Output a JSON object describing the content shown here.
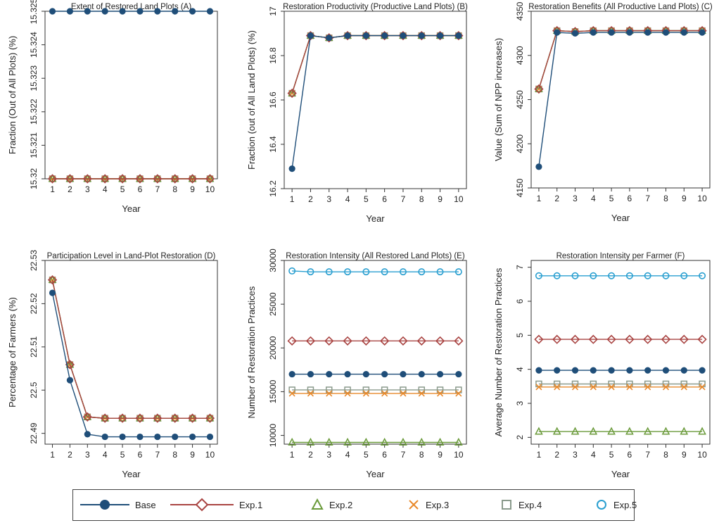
{
  "series_meta": [
    {
      "name": "Base",
      "color": "#1f4e79",
      "marker": "filled-circle"
    },
    {
      "name": "Exp.1",
      "color": "#a94442",
      "marker": "diamond"
    },
    {
      "name": "Exp.2",
      "color": "#6a9a3a",
      "marker": "triangle"
    },
    {
      "name": "Exp.3",
      "color": "#e8892b",
      "marker": "x"
    },
    {
      "name": "Exp.4",
      "color": "#8a9a8c",
      "marker": "square"
    },
    {
      "name": "Exp.5",
      "color": "#2a9fd0",
      "marker": "circle"
    }
  ],
  "legend": {
    "items": [
      "Base",
      "Exp.1",
      "Exp.2",
      "Exp.3",
      "Exp.4",
      "Exp.5"
    ]
  },
  "chart_data": [
    {
      "type": "line",
      "title": "Extent of Restored Land Plots (A)",
      "xlabel": "Year",
      "ylabel": "Fraction (Out of All Plots) (%)",
      "x": [
        1,
        2,
        3,
        4,
        5,
        6,
        7,
        8,
        9,
        10
      ],
      "xticks": [
        "1",
        "2",
        "3",
        "4",
        "5",
        "6",
        "7",
        "8",
        "9",
        "10"
      ],
      "ylim": [
        15.32,
        15.325
      ],
      "yticks": [
        15.32,
        15.321,
        15.322,
        15.323,
        15.324,
        15.325
      ],
      "ytick_labels": [
        "15.32",
        "15.321",
        "15.322",
        "15.323",
        "15.324",
        "15.325"
      ],
      "series": [
        {
          "name": "Base",
          "values": [
            15.325,
            15.325,
            15.325,
            15.325,
            15.325,
            15.325,
            15.325,
            15.325,
            15.325,
            15.325
          ]
        },
        {
          "name": "Exp.1",
          "values": [
            15.32,
            15.32,
            15.32,
            15.32,
            15.32,
            15.32,
            15.32,
            15.32,
            15.32,
            15.32
          ]
        },
        {
          "name": "Exp.2",
          "values": [
            15.32,
            15.32,
            15.32,
            15.32,
            15.32,
            15.32,
            15.32,
            15.32,
            15.32,
            15.32
          ]
        },
        {
          "name": "Exp.3",
          "values": [
            15.32,
            15.32,
            15.32,
            15.32,
            15.32,
            15.32,
            15.32,
            15.32,
            15.32,
            15.32
          ]
        },
        {
          "name": "Exp.4",
          "values": [
            15.32,
            15.32,
            15.32,
            15.32,
            15.32,
            15.32,
            15.32,
            15.32,
            15.32,
            15.32
          ]
        },
        {
          "name": "Exp.5",
          "values": [
            15.32,
            15.32,
            15.32,
            15.32,
            15.32,
            15.32,
            15.32,
            15.32,
            15.32,
            15.32
          ]
        }
      ]
    },
    {
      "type": "line",
      "title": "Restoration Productivity (Productive Land Plots) (B)",
      "xlabel": "Year",
      "ylabel": "Fraction (out of All Land Plots) (%)",
      "x": [
        1,
        2,
        3,
        4,
        5,
        6,
        7,
        8,
        9,
        10
      ],
      "xticks": [
        "1",
        "2",
        "3",
        "4",
        "5",
        "6",
        "7",
        "8",
        "9",
        "10"
      ],
      "ylim": [
        16.2,
        17
      ],
      "yticks": [
        16.2,
        16.4,
        16.6,
        16.8,
        17
      ],
      "ytick_labels": [
        "16.2",
        "16.4",
        "16.6",
        "16.8",
        "17"
      ],
      "series": [
        {
          "name": "Base",
          "values": [
            16.29,
            16.89,
            16.88,
            16.89,
            16.89,
            16.89,
            16.89,
            16.89,
            16.89,
            16.89
          ]
        },
        {
          "name": "Exp.1",
          "values": [
            16.63,
            16.89,
            16.88,
            16.89,
            16.89,
            16.89,
            16.89,
            16.89,
            16.89,
            16.89
          ]
        },
        {
          "name": "Exp.2",
          "values": [
            16.63,
            16.89,
            16.88,
            16.89,
            16.89,
            16.89,
            16.89,
            16.89,
            16.89,
            16.89
          ]
        },
        {
          "name": "Exp.3",
          "values": [
            16.63,
            16.89,
            16.88,
            16.89,
            16.89,
            16.89,
            16.89,
            16.89,
            16.89,
            16.89
          ]
        },
        {
          "name": "Exp.4",
          "values": [
            16.63,
            16.89,
            16.88,
            16.89,
            16.89,
            16.89,
            16.89,
            16.89,
            16.89,
            16.89
          ]
        },
        {
          "name": "Exp.5",
          "values": [
            16.63,
            16.89,
            16.88,
            16.89,
            16.89,
            16.89,
            16.89,
            16.89,
            16.89,
            16.89
          ]
        }
      ]
    },
    {
      "type": "line",
      "title": "Restoration Benefits (All Productive Land Plots) (C)",
      "xlabel": "Year",
      "ylabel": "Value (Sum of NPP increases)",
      "x": [
        1,
        2,
        3,
        4,
        5,
        6,
        7,
        8,
        9,
        10
      ],
      "xticks": [
        "1",
        "2",
        "3",
        "4",
        "5",
        "6",
        "7",
        "8",
        "9",
        "10"
      ],
      "ylim": [
        4150,
        4350
      ],
      "yticks": [
        4150,
        4200,
        4250,
        4300,
        4350
      ],
      "ytick_labels": [
        "4150",
        "4200",
        "4250",
        "4300",
        "4350"
      ],
      "series": [
        {
          "name": "Base",
          "values": [
            4174,
            4326,
            4325,
            4326,
            4326,
            4326,
            4326,
            4326,
            4326,
            4326
          ]
        },
        {
          "name": "Exp.1",
          "values": [
            4262,
            4328,
            4327,
            4328,
            4328,
            4328,
            4328,
            4328,
            4328,
            4328
          ]
        },
        {
          "name": "Exp.2",
          "values": [
            4262,
            4328,
            4327,
            4328,
            4328,
            4328,
            4328,
            4328,
            4328,
            4328
          ]
        },
        {
          "name": "Exp.3",
          "values": [
            4262,
            4328,
            4327,
            4328,
            4328,
            4328,
            4328,
            4328,
            4328,
            4328
          ]
        },
        {
          "name": "Exp.4",
          "values": [
            4262,
            4328,
            4327,
            4328,
            4328,
            4328,
            4328,
            4328,
            4328,
            4328
          ]
        },
        {
          "name": "Exp.5",
          "values": [
            4262,
            4328,
            4327,
            4328,
            4328,
            4328,
            4328,
            4328,
            4328,
            4328
          ]
        }
      ]
    },
    {
      "type": "line",
      "title": "Participation Level in Land-Plot Restoration (D)",
      "xlabel": "Year",
      "ylabel": "Percentage of Farmers (%)",
      "x": [
        1,
        2,
        3,
        4,
        5,
        6,
        7,
        8,
        9,
        10
      ],
      "xticks": [
        "1",
        "2",
        "3",
        "4",
        "5",
        "6",
        "7",
        "8",
        "9",
        "10"
      ],
      "ylim": [
        22.4875,
        22.53
      ],
      "yticks": [
        22.49,
        22.5,
        22.51,
        22.52,
        22.53
      ],
      "ytick_labels": [
        "22.49",
        "22.5",
        "22.51",
        "22.52",
        "22.53"
      ],
      "series": [
        {
          "name": "Base",
          "values": [
            22.5225,
            22.5023,
            22.4898,
            22.4892,
            22.4892,
            22.4892,
            22.4892,
            22.4892,
            22.4892,
            22.4892
          ]
        },
        {
          "name": "Exp.1",
          "values": [
            22.5255,
            22.5059,
            22.4938,
            22.4935,
            22.4935,
            22.4935,
            22.4935,
            22.4935,
            22.4935,
            22.4935
          ]
        },
        {
          "name": "Exp.2",
          "values": [
            22.5255,
            22.5059,
            22.4938,
            22.4935,
            22.4935,
            22.4935,
            22.4935,
            22.4935,
            22.4935,
            22.4935
          ]
        },
        {
          "name": "Exp.3",
          "values": [
            22.5255,
            22.5059,
            22.4938,
            22.4935,
            22.4935,
            22.4935,
            22.4935,
            22.4935,
            22.4935,
            22.4935
          ]
        },
        {
          "name": "Exp.4",
          "values": [
            22.5255,
            22.5059,
            22.4938,
            22.4935,
            22.4935,
            22.4935,
            22.4935,
            22.4935,
            22.4935,
            22.4935
          ]
        },
        {
          "name": "Exp.5",
          "values": [
            22.5255,
            22.5059,
            22.4938,
            22.4935,
            22.4935,
            22.4935,
            22.4935,
            22.4935,
            22.4935,
            22.4935
          ]
        }
      ]
    },
    {
      "type": "line",
      "title": "Restoration Intensity (All Restored Land Plots) (E)",
      "xlabel": "Year",
      "ylabel": "Number of Restoration Practices",
      "x": [
        1,
        2,
        3,
        4,
        5,
        6,
        7,
        8,
        9,
        10
      ],
      "xticks": [
        "1",
        "2",
        "3",
        "4",
        "5",
        "6",
        "7",
        "8",
        "9",
        "10"
      ],
      "ylim": [
        9000,
        30000
      ],
      "yticks": [
        10000,
        15000,
        20000,
        25000,
        30000
      ],
      "ytick_labels": [
        "10000",
        "15000",
        "20000",
        "25000",
        "30000"
      ],
      "series": [
        {
          "name": "Base",
          "values": [
            17000,
            17000,
            17000,
            17000,
            17000,
            17000,
            17000,
            17000,
            17000,
            17000
          ]
        },
        {
          "name": "Exp.1",
          "values": [
            20800,
            20800,
            20800,
            20800,
            20800,
            20800,
            20800,
            20800,
            20800,
            20800
          ]
        },
        {
          "name": "Exp.2",
          "values": [
            9200,
            9200,
            9200,
            9200,
            9200,
            9200,
            9200,
            9200,
            9200,
            9200
          ]
        },
        {
          "name": "Exp.3",
          "values": [
            14800,
            14800,
            14800,
            14800,
            14800,
            14800,
            14800,
            14800,
            14800,
            14800
          ]
        },
        {
          "name": "Exp.4",
          "values": [
            15200,
            15200,
            15200,
            15200,
            15200,
            15200,
            15200,
            15200,
            15200,
            15200
          ]
        },
        {
          "name": "Exp.5",
          "values": [
            28800,
            28700,
            28700,
            28700,
            28700,
            28700,
            28700,
            28700,
            28700,
            28700
          ]
        }
      ]
    },
    {
      "type": "line",
      "title": "Restoration Intensity per Farmer (F)",
      "xlabel": "Year",
      "ylabel": "Average Number of Restoration Practices",
      "x": [
        1,
        2,
        3,
        4,
        5,
        6,
        7,
        8,
        9,
        10
      ],
      "xticks": [
        "1",
        "2",
        "3",
        "4",
        "5",
        "6",
        "7",
        "8",
        "9",
        "10"
      ],
      "ylim": [
        1.8,
        7.2
      ],
      "yticks": [
        2,
        3,
        4,
        5,
        6,
        7
      ],
      "ytick_labels": [
        "2",
        "3",
        "4",
        "5",
        "6",
        "7"
      ],
      "series": [
        {
          "name": "Base",
          "values": [
            3.97,
            3.97,
            3.97,
            3.97,
            3.97,
            3.97,
            3.97,
            3.97,
            3.97,
            3.97
          ]
        },
        {
          "name": "Exp.1",
          "values": [
            4.88,
            4.88,
            4.88,
            4.88,
            4.88,
            4.88,
            4.88,
            4.88,
            4.88,
            4.88
          ]
        },
        {
          "name": "Exp.2",
          "values": [
            2.17,
            2.17,
            2.17,
            2.17,
            2.17,
            2.17,
            2.17,
            2.17,
            2.17,
            2.17
          ]
        },
        {
          "name": "Exp.3",
          "values": [
            3.48,
            3.48,
            3.48,
            3.48,
            3.48,
            3.48,
            3.48,
            3.48,
            3.48,
            3.48
          ]
        },
        {
          "name": "Exp.4",
          "values": [
            3.57,
            3.57,
            3.57,
            3.57,
            3.57,
            3.57,
            3.57,
            3.57,
            3.57,
            3.57
          ]
        },
        {
          "name": "Exp.5",
          "values": [
            6.75,
            6.75,
            6.75,
            6.75,
            6.75,
            6.75,
            6.75,
            6.75,
            6.75,
            6.75
          ]
        }
      ]
    }
  ]
}
